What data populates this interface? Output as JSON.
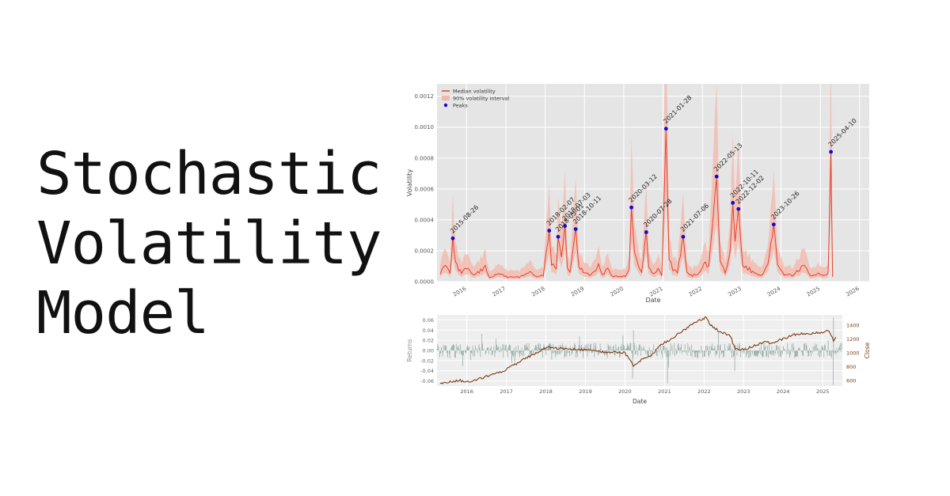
{
  "headline": {
    "lines": [
      "Stochastic",
      "Volatility",
      "Model"
    ]
  },
  "chart_data": [
    {
      "type": "line",
      "xlabel": "Date",
      "ylabel": "Volatility",
      "xlim": [
        "2015-04-01",
        "2026-04-01"
      ],
      "ylim": [
        0,
        0.00128
      ],
      "xticks": [
        "2016",
        "2017",
        "2018",
        "2019",
        "2020",
        "2021",
        "2022",
        "2023",
        "2024",
        "2025",
        "2026"
      ],
      "yticks": [
        "0.0000",
        "0.0002",
        "0.0004",
        "0.0006",
        "0.0008",
        "0.0010",
        "0.0012"
      ],
      "grid": true,
      "legend_position": "top-left",
      "legend": [
        "Median volatility",
        "90% volatility interval",
        "Peaks"
      ],
      "colors": {
        "median": "#e8412c",
        "interval": "#f3b7aa",
        "peaks": "#0b0bd6",
        "background": "#e5e5e5"
      },
      "series": [
        {
          "name": "Median volatility",
          "x": [
            "2015-05-01",
            "2015-06-15",
            "2015-08-01",
            "2015-08-26",
            "2015-09-20",
            "2015-11-15",
            "2016-01-15",
            "2016-03-01",
            "2016-06-24",
            "2016-08-01",
            "2016-11-09",
            "2017-01-15",
            "2017-05-01",
            "2017-08-11",
            "2017-10-15",
            "2017-12-15",
            "2018-02-07",
            "2018-03-01",
            "2018-04-15",
            "2018-05-01",
            "2018-06-01",
            "2018-07-03",
            "2018-07-25",
            "2018-08-20",
            "2018-10-11",
            "2018-11-10",
            "2019-01-03",
            "2019-03-01",
            "2019-05-13",
            "2019-06-15",
            "2019-08-05",
            "2019-09-15",
            "2019-11-15",
            "2020-01-15",
            "2020-02-20",
            "2020-03-12",
            "2020-04-10",
            "2020-05-15",
            "2020-06-15",
            "2020-07-28",
            "2020-08-20",
            "2020-10-15",
            "2020-11-15",
            "2020-12-20",
            "2021-01-28",
            "2021-02-25",
            "2021-04-01",
            "2021-05-15",
            "2021-07-06",
            "2021-08-10",
            "2021-10-01",
            "2021-12-01",
            "2022-01-15",
            "2022-03-01",
            "2022-05-13",
            "2022-06-15",
            "2022-08-01",
            "2022-09-15",
            "2022-10-11",
            "2022-11-01",
            "2022-12-02",
            "2023-01-10",
            "2023-03-15",
            "2023-05-01",
            "2023-07-15",
            "2023-09-01",
            "2023-10-26",
            "2023-12-01",
            "2024-02-01",
            "2024-04-15",
            "2024-08-05",
            "2024-10-01",
            "2024-12-15",
            "2025-02-01",
            "2025-03-15",
            "2025-04-10",
            "2025-04-25"
          ],
          "values": [
            5e-05,
            0.00012,
            6e-05,
            0.00028,
            0.00012,
            5e-05,
            0.0001,
            4e-05,
            9e-05,
            3e-05,
            5e-05,
            3e-05,
            3e-05,
            6e-05,
            3e-05,
            4e-05,
            0.00033,
            0.00012,
            8e-05,
            0.00029,
            0.00015,
            0.00036,
            0.0001,
            6e-05,
            0.00034,
            9e-05,
            6e-05,
            4e-05,
            0.0001,
            4e-05,
            9e-05,
            4e-05,
            3e-05,
            4e-05,
            8e-05,
            0.00048,
            0.0002,
            0.0001,
            7e-05,
            0.00032,
            8e-05,
            5e-05,
            8e-05,
            4e-05,
            0.00099,
            0.00015,
            8e-05,
            6e-05,
            0.00029,
            6e-05,
            4e-05,
            5e-05,
            0.00012,
            0.0001,
            0.00068,
            0.00012,
            6e-05,
            0.00018,
            0.00051,
            0.00025,
            0.00047,
            0.0001,
            8e-05,
            5e-05,
            4e-05,
            0.0001,
            0.00037,
            0.0001,
            5e-05,
            4e-05,
            0.0001,
            4e-05,
            5e-05,
            4e-05,
            6e-05,
            0.00084,
            3e-05
          ]
        }
      ],
      "peaks": [
        {
          "label": "2015-08-26",
          "x": "2015-08-26",
          "y": 0.00028
        },
        {
          "label": "2018-02-07",
          "x": "2018-02-07",
          "y": 0.00033
        },
        {
          "label": "2018-05-01",
          "x": "2018-05-01",
          "y": 0.00029
        },
        {
          "label": "2018-07-03",
          "x": "2018-07-03",
          "y": 0.00036
        },
        {
          "label": "2018-10-11",
          "x": "2018-10-11",
          "y": 0.00034
        },
        {
          "label": "2020-03-12",
          "x": "2020-03-12",
          "y": 0.00048
        },
        {
          "label": "2020-07-28",
          "x": "2020-07-28",
          "y": 0.00032
        },
        {
          "label": "2021-01-28",
          "x": "2021-01-28",
          "y": 0.00099
        },
        {
          "label": "2021-07-06",
          "x": "2021-07-06",
          "y": 0.00029
        },
        {
          "label": "2022-05-13",
          "x": "2022-05-13",
          "y": 0.00068
        },
        {
          "label": "2022-10-11",
          "x": "2022-10-11",
          "y": 0.00051
        },
        {
          "label": "2022-12-02",
          "x": "2022-12-02",
          "y": 0.00047
        },
        {
          "label": "2023-10-26",
          "x": "2023-10-26",
          "y": 0.00037
        },
        {
          "label": "2025-04-10",
          "x": "2025-04-10",
          "y": 0.00084
        }
      ]
    },
    {
      "type": "line",
      "xlabel": "Date",
      "ylabel": "Returns",
      "ylabel_right": "Close",
      "xlim": [
        "2015-04-01",
        "2025-07-01"
      ],
      "ylim": [
        -0.07,
        0.07
      ],
      "ylim_right": [
        520,
        1550
      ],
      "xticks": [
        "2016",
        "2017",
        "2018",
        "2019",
        "2020",
        "2021",
        "2022",
        "2023",
        "2024",
        "2025"
      ],
      "yticks": [
        "-0.06",
        "-0.04",
        "-0.02",
        "0.00",
        "0.02",
        "0.04",
        "0.06"
      ],
      "yticks_right": [
        "600",
        "800",
        "1000",
        "1200",
        "1400"
      ],
      "grid": true,
      "colors": {
        "returns": "#8fa69f",
        "close": "#7a3b12",
        "background": "#eeeeee"
      },
      "series": [
        {
          "name": "Close",
          "x": [
            "2015-05-01",
            "2015-08-01",
            "2015-11-01",
            "2016-02-01",
            "2016-06-01",
            "2016-10-01",
            "2017-01-01",
            "2017-04-01",
            "2017-07-01",
            "2017-10-01",
            "2018-01-15",
            "2018-04-01",
            "2018-07-01",
            "2018-10-01",
            "2019-01-01",
            "2019-04-01",
            "2019-07-01",
            "2019-10-01",
            "2020-01-01",
            "2020-03-20",
            "2020-06-01",
            "2020-09-01",
            "2020-12-01",
            "2021-03-01",
            "2021-06-01",
            "2021-09-01",
            "2021-12-01",
            "2022-01-20",
            "2022-03-01",
            "2022-06-01",
            "2022-09-01",
            "2022-10-15",
            "2023-01-01",
            "2023-04-01",
            "2023-07-01",
            "2023-10-01",
            "2024-01-01",
            "2024-04-01",
            "2024-07-01",
            "2024-10-01",
            "2025-01-01",
            "2025-03-01",
            "2025-04-10",
            "2025-05-01"
          ],
          "values": [
            560,
            580,
            600,
            580,
            640,
            700,
            760,
            840,
            920,
            1000,
            1090,
            1070,
            1060,
            1050,
            1040,
            1030,
            1010,
            1010,
            1000,
            820,
            900,
            960,
            1120,
            1200,
            1300,
            1400,
            1480,
            1510,
            1400,
            1300,
            1250,
            1050,
            1050,
            1100,
            1150,
            1150,
            1200,
            1260,
            1280,
            1280,
            1300,
            1330,
            1180,
            1230
          ]
        }
      ]
    }
  ]
}
